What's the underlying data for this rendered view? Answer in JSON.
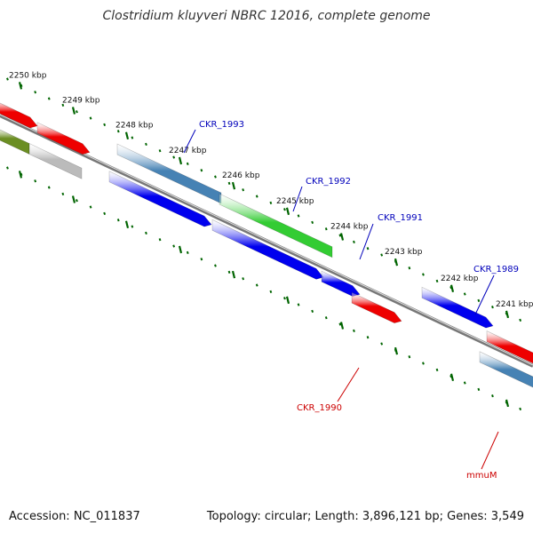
{
  "title": "Clostridium kluyveri NBRC 12016, complete genome",
  "accession_text": "Accession: NC_011837",
  "summary_text": "Topology: circular; Length: 3,896,121 bp; Genes: 3,549",
  "scale": {
    "unit": "kbp",
    "ticks": [
      "2250 kbp",
      "2249 kbp",
      "2248 kbp",
      "2247 kbp",
      "2246 kbp",
      "2245 kbp",
      "2244 kbp",
      "2243 kbp",
      "2242 kbp",
      "2241 kbp"
    ]
  },
  "genes": [
    {
      "name": "CKR_1993",
      "color": "#0000bb"
    },
    {
      "name": "CKR_1992",
      "color": "#0000bb"
    },
    {
      "name": "CKR_1991",
      "color": "#0000bb"
    },
    {
      "name": "CKR_1989",
      "color": "#0000bb"
    },
    {
      "name": "CKR_1990",
      "color": "#cc0000"
    },
    {
      "name": "mmuM",
      "color": "#cc0000"
    }
  ],
  "colors": {
    "blue": "#0000ee",
    "steel": "#4682b4",
    "green": "#33cc33",
    "red": "#ee0000",
    "olive": "#6b8e23",
    "gray": "#bbbbbb",
    "backbone": "#777777",
    "tick": "#006400"
  }
}
